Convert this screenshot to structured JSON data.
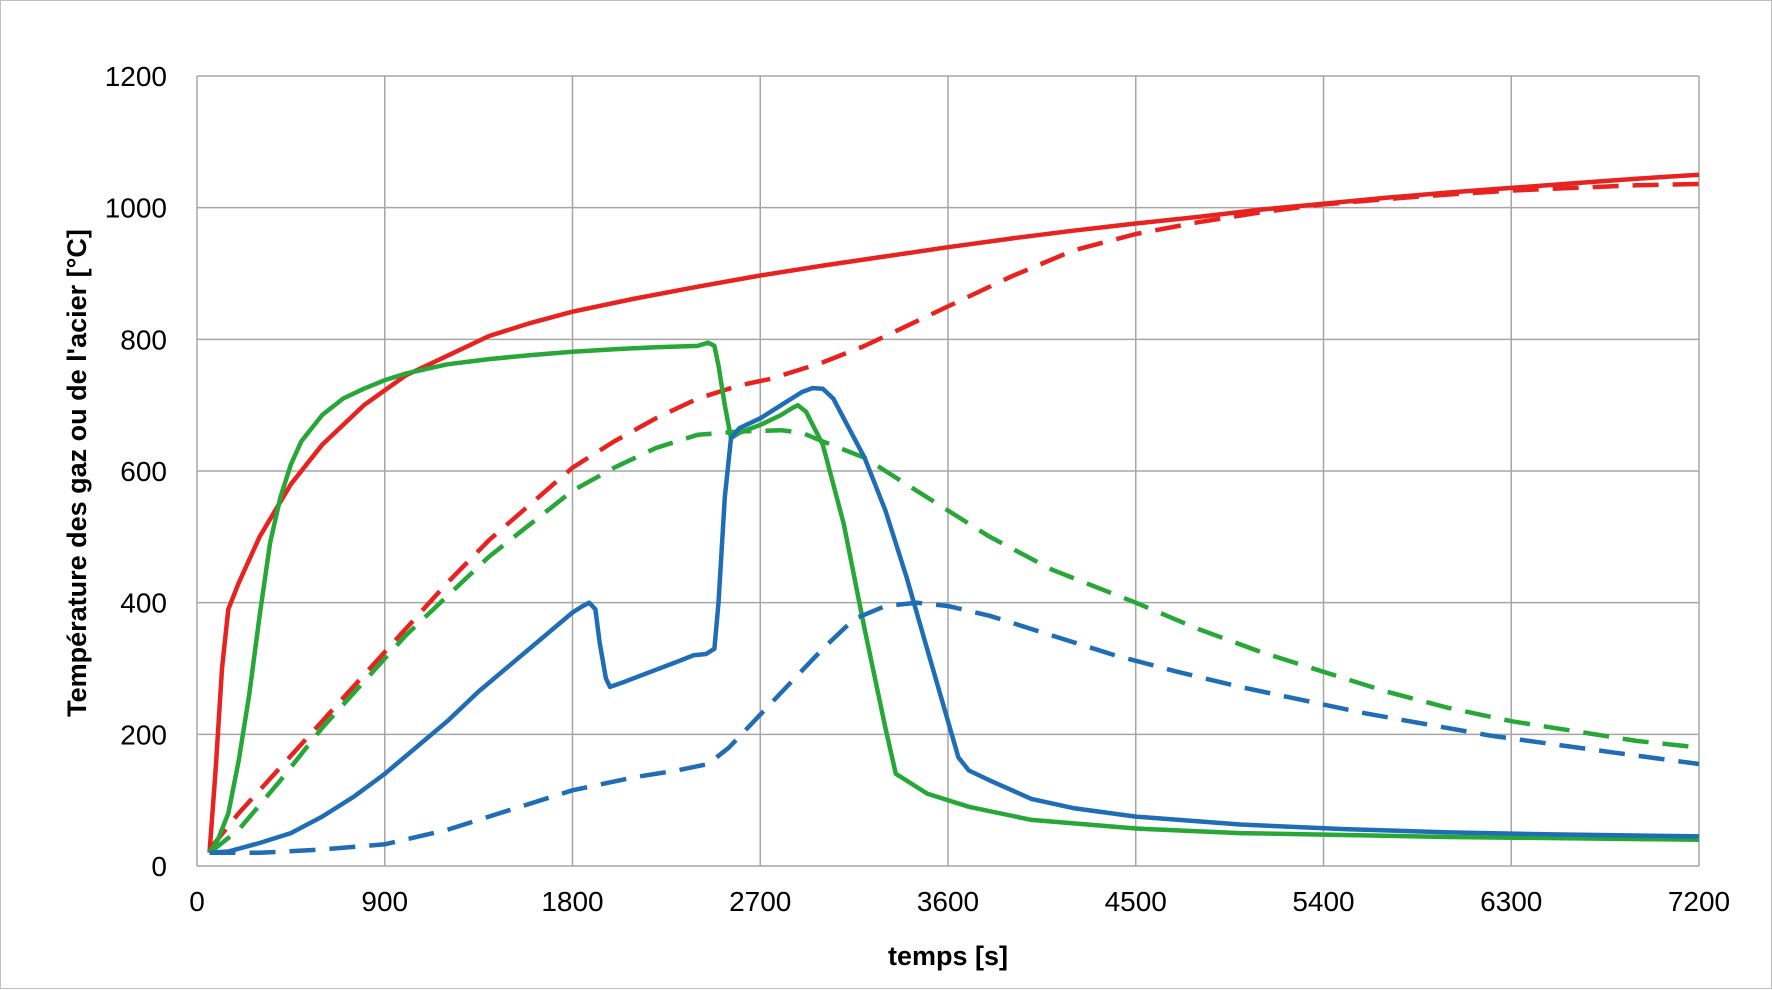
{
  "chart_data": {
    "type": "line",
    "title": "",
    "xlabel": "temps [s]",
    "ylabel": "Température des  gaz ou de l'acier [°C]",
    "xlim": [
      0,
      7200
    ],
    "ylim": [
      0,
      1200
    ],
    "x_ticks": [
      0,
      900,
      1800,
      2700,
      3600,
      4500,
      5400,
      6300,
      7200
    ],
    "y_ticks": [
      0,
      200,
      400,
      600,
      800,
      1000,
      1200
    ],
    "grid": true,
    "legend": "none",
    "series": [
      {
        "name": "red-solid",
        "color": "#e8231f",
        "dashed": false,
        "points": [
          [
            60,
            20
          ],
          [
            90,
            150
          ],
          [
            120,
            300
          ],
          [
            150,
            390
          ],
          [
            200,
            430
          ],
          [
            300,
            500
          ],
          [
            450,
            580
          ],
          [
            600,
            640
          ],
          [
            800,
            700
          ],
          [
            1000,
            745
          ],
          [
            1200,
            775
          ],
          [
            1400,
            805
          ],
          [
            1600,
            825
          ],
          [
            1800,
            842
          ],
          [
            2100,
            862
          ],
          [
            2400,
            880
          ],
          [
            2700,
            897
          ],
          [
            3000,
            912
          ],
          [
            3300,
            926
          ],
          [
            3600,
            940
          ],
          [
            3900,
            953
          ],
          [
            4200,
            965
          ],
          [
            4500,
            976
          ],
          [
            4800,
            986
          ],
          [
            5100,
            997
          ],
          [
            5400,
            1006
          ],
          [
            5700,
            1015
          ],
          [
            6000,
            1023
          ],
          [
            6300,
            1030
          ],
          [
            6600,
            1037
          ],
          [
            6900,
            1044
          ],
          [
            7200,
            1050
          ]
        ]
      },
      {
        "name": "red-dashed",
        "color": "#e8231f",
        "dashed": true,
        "points": [
          [
            60,
            25
          ],
          [
            200,
            80
          ],
          [
            400,
            150
          ],
          [
            600,
            220
          ],
          [
            800,
            290
          ],
          [
            1000,
            360
          ],
          [
            1200,
            430
          ],
          [
            1400,
            495
          ],
          [
            1600,
            550
          ],
          [
            1800,
            605
          ],
          [
            2000,
            645
          ],
          [
            2200,
            680
          ],
          [
            2400,
            710
          ],
          [
            2600,
            730
          ],
          [
            2750,
            740
          ],
          [
            2900,
            755
          ],
          [
            3000,
            765
          ],
          [
            3200,
            790
          ],
          [
            3400,
            820
          ],
          [
            3600,
            850
          ],
          [
            3900,
            895
          ],
          [
            4200,
            935
          ],
          [
            4500,
            960
          ],
          [
            4800,
            978
          ],
          [
            5100,
            993
          ],
          [
            5400,
            1005
          ],
          [
            5700,
            1013
          ],
          [
            6000,
            1020
          ],
          [
            6300,
            1026
          ],
          [
            6600,
            1030
          ],
          [
            6900,
            1034
          ],
          [
            7200,
            1036
          ]
        ]
      },
      {
        "name": "green-solid",
        "color": "#27a737",
        "dashed": false,
        "points": [
          [
            60,
            20
          ],
          [
            100,
            40
          ],
          [
            150,
            80
          ],
          [
            200,
            160
          ],
          [
            250,
            260
          ],
          [
            300,
            380
          ],
          [
            350,
            490
          ],
          [
            400,
            560
          ],
          [
            450,
            610
          ],
          [
            500,
            645
          ],
          [
            600,
            685
          ],
          [
            700,
            710
          ],
          [
            800,
            725
          ],
          [
            900,
            738
          ],
          [
            1000,
            748
          ],
          [
            1200,
            762
          ],
          [
            1400,
            770
          ],
          [
            1600,
            776
          ],
          [
            1800,
            781
          ],
          [
            2000,
            785
          ],
          [
            2200,
            788
          ],
          [
            2400,
            790
          ],
          [
            2450,
            795
          ],
          [
            2480,
            790
          ],
          [
            2500,
            760
          ],
          [
            2530,
            700
          ],
          [
            2560,
            650
          ],
          [
            2600,
            658
          ],
          [
            2700,
            670
          ],
          [
            2800,
            685
          ],
          [
            2850,
            695
          ],
          [
            2880,
            700
          ],
          [
            2920,
            690
          ],
          [
            3000,
            640
          ],
          [
            3100,
            520
          ],
          [
            3200,
            360
          ],
          [
            3300,
            210
          ],
          [
            3350,
            140
          ],
          [
            3400,
            130
          ],
          [
            3500,
            110
          ],
          [
            3700,
            90
          ],
          [
            4000,
            70
          ],
          [
            4500,
            57
          ],
          [
            5000,
            50
          ],
          [
            6000,
            44
          ],
          [
            7200,
            40
          ]
        ]
      },
      {
        "name": "green-dashed",
        "color": "#27a737",
        "dashed": true,
        "points": [
          [
            60,
            20
          ],
          [
            200,
            55
          ],
          [
            400,
            130
          ],
          [
            600,
            210
          ],
          [
            800,
            280
          ],
          [
            1000,
            350
          ],
          [
            1200,
            410
          ],
          [
            1400,
            470
          ],
          [
            1600,
            520
          ],
          [
            1800,
            570
          ],
          [
            2000,
            605
          ],
          [
            2200,
            635
          ],
          [
            2400,
            655
          ],
          [
            2600,
            660
          ],
          [
            2800,
            662
          ],
          [
            2900,
            658
          ],
          [
            3000,
            645
          ],
          [
            3200,
            620
          ],
          [
            3400,
            580
          ],
          [
            3600,
            540
          ],
          [
            3800,
            500
          ],
          [
            4100,
            450
          ],
          [
            4500,
            400
          ],
          [
            4800,
            360
          ],
          [
            5100,
            325
          ],
          [
            5400,
            295
          ],
          [
            5700,
            265
          ],
          [
            6000,
            240
          ],
          [
            6300,
            220
          ],
          [
            6600,
            205
          ],
          [
            6900,
            190
          ],
          [
            7200,
            180
          ]
        ]
      },
      {
        "name": "blue-solid",
        "color": "#1f6db5",
        "dashed": false,
        "points": [
          [
            60,
            20
          ],
          [
            150,
            22
          ],
          [
            300,
            35
          ],
          [
            450,
            50
          ],
          [
            600,
            75
          ],
          [
            750,
            105
          ],
          [
            900,
            140
          ],
          [
            1050,
            180
          ],
          [
            1200,
            220
          ],
          [
            1350,
            265
          ],
          [
            1500,
            305
          ],
          [
            1650,
            345
          ],
          [
            1800,
            385
          ],
          [
            1850,
            395
          ],
          [
            1880,
            400
          ],
          [
            1910,
            390
          ],
          [
            1930,
            340
          ],
          [
            1960,
            285
          ],
          [
            1980,
            272
          ],
          [
            2050,
            280
          ],
          [
            2200,
            298
          ],
          [
            2300,
            310
          ],
          [
            2380,
            320
          ],
          [
            2440,
            322
          ],
          [
            2480,
            330
          ],
          [
            2500,
            400
          ],
          [
            2530,
            560
          ],
          [
            2560,
            650
          ],
          [
            2600,
            665
          ],
          [
            2700,
            680
          ],
          [
            2800,
            700
          ],
          [
            2900,
            720
          ],
          [
            2950,
            726
          ],
          [
            3000,
            725
          ],
          [
            3050,
            710
          ],
          [
            3100,
            680
          ],
          [
            3200,
            620
          ],
          [
            3300,
            540
          ],
          [
            3400,
            440
          ],
          [
            3500,
            330
          ],
          [
            3600,
            220
          ],
          [
            3650,
            165
          ],
          [
            3700,
            145
          ],
          [
            3800,
            130
          ],
          [
            4000,
            102
          ],
          [
            4200,
            88
          ],
          [
            4500,
            75
          ],
          [
            5000,
            63
          ],
          [
            5500,
            56
          ],
          [
            6000,
            51
          ],
          [
            6500,
            48
          ],
          [
            7200,
            45
          ]
        ]
      },
      {
        "name": "blue-dashed",
        "color": "#1f6db5",
        "dashed": true,
        "points": [
          [
            60,
            20
          ],
          [
            300,
            20
          ],
          [
            600,
            25
          ],
          [
            900,
            33
          ],
          [
            1200,
            55
          ],
          [
            1500,
            85
          ],
          [
            1800,
            115
          ],
          [
            2100,
            135
          ],
          [
            2300,
            145
          ],
          [
            2450,
            155
          ],
          [
            2550,
            180
          ],
          [
            2700,
            230
          ],
          [
            2850,
            280
          ],
          [
            3000,
            330
          ],
          [
            3150,
            375
          ],
          [
            3300,
            395
          ],
          [
            3450,
            400
          ],
          [
            3600,
            395
          ],
          [
            3800,
            380
          ],
          [
            4100,
            350
          ],
          [
            4400,
            320
          ],
          [
            4700,
            295
          ],
          [
            5000,
            272
          ],
          [
            5300,
            252
          ],
          [
            5600,
            232
          ],
          [
            5900,
            215
          ],
          [
            6200,
            198
          ],
          [
            6500,
            185
          ],
          [
            6800,
            172
          ],
          [
            7200,
            155
          ]
        ]
      }
    ]
  }
}
